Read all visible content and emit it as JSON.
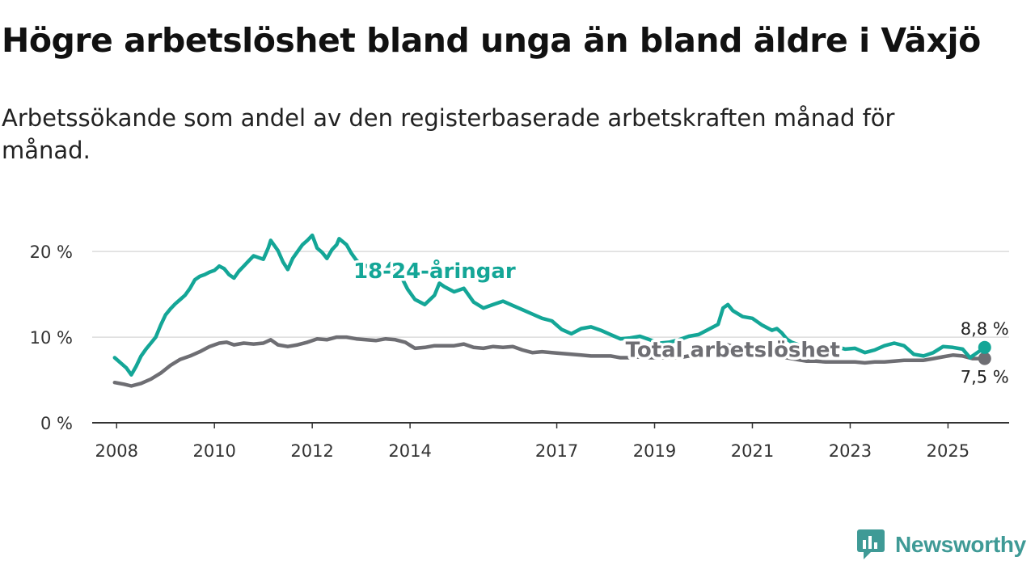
{
  "title": "Högre arbetslöshet bland unga än bland äldre i Växjö",
  "subtitle": "Arbetssökande som andel av den registerbaserade arbetskraften månad för månad.",
  "brand": {
    "name": "Newsworthy"
  },
  "colors": {
    "youth": "#14a697",
    "total": "#6e6e73",
    "grid": "#dcdcdc",
    "axis": "#333333"
  },
  "chart_data": {
    "type": "line",
    "title": "Högre arbetslöshet bland unga än bland äldre i Växjö",
    "subtitle": "Arbetssökande som andel av den registerbaserade arbetskraften månad för månad.",
    "xlabel": "",
    "ylabel": "",
    "xlim": [
      2007.5,
      2026.25
    ],
    "ylim": [
      0,
      22
    ],
    "grid": "horizontal",
    "x_ticks": [
      2008,
      2010,
      2012,
      2014,
      2017,
      2019,
      2021,
      2023,
      2025
    ],
    "x_tick_labels": [
      "2008",
      "2010",
      "2012",
      "2014",
      "2017",
      "2019",
      "2021",
      "2023",
      "2025"
    ],
    "y_ticks": [
      0,
      10,
      20
    ],
    "y_tick_labels": [
      "0 %",
      "10 %",
      "20 %"
    ],
    "series": [
      {
        "name": "18-24-åringar",
        "color": "#14a697",
        "end_label": "8,8 %",
        "points": [
          [
            2007.96,
            7.6
          ],
          [
            2008.1,
            6.9
          ],
          [
            2008.2,
            6.4
          ],
          [
            2008.3,
            5.6
          ],
          [
            2008.4,
            6.6
          ],
          [
            2008.5,
            7.8
          ],
          [
            2008.6,
            8.6
          ],
          [
            2008.7,
            9.3
          ],
          [
            2008.8,
            10.0
          ],
          [
            2008.9,
            11.4
          ],
          [
            2009.0,
            12.6
          ],
          [
            2009.1,
            13.3
          ],
          [
            2009.2,
            13.9
          ],
          [
            2009.3,
            14.4
          ],
          [
            2009.4,
            14.9
          ],
          [
            2009.5,
            15.7
          ],
          [
            2009.6,
            16.7
          ],
          [
            2009.7,
            17.1
          ],
          [
            2009.8,
            17.3
          ],
          [
            2009.9,
            17.6
          ],
          [
            2010.0,
            17.8
          ],
          [
            2010.1,
            18.3
          ],
          [
            2010.2,
            18.0
          ],
          [
            2010.3,
            17.3
          ],
          [
            2010.4,
            16.9
          ],
          [
            2010.5,
            17.7
          ],
          [
            2010.6,
            18.3
          ],
          [
            2010.7,
            18.9
          ],
          [
            2010.8,
            19.5
          ],
          [
            2010.9,
            19.3
          ],
          [
            2011.0,
            19.1
          ],
          [
            2011.1,
            20.4
          ],
          [
            2011.15,
            21.3
          ],
          [
            2011.3,
            20.1
          ],
          [
            2011.4,
            18.8
          ],
          [
            2011.5,
            17.9
          ],
          [
            2011.6,
            19.2
          ],
          [
            2011.7,
            20.0
          ],
          [
            2011.8,
            20.8
          ],
          [
            2011.9,
            21.3
          ],
          [
            2012.0,
            21.9
          ],
          [
            2012.1,
            20.4
          ],
          [
            2012.2,
            19.9
          ],
          [
            2012.3,
            19.2
          ],
          [
            2012.4,
            20.2
          ],
          [
            2012.5,
            20.8
          ],
          [
            2012.55,
            21.5
          ],
          [
            2012.7,
            20.8
          ],
          [
            2012.8,
            19.8
          ],
          [
            2012.9,
            19.0
          ],
          [
            2013.0,
            18.6
          ],
          [
            2013.15,
            18.2
          ],
          [
            2013.3,
            17.9
          ],
          [
            2013.45,
            17.4
          ],
          [
            2013.6,
            18.6
          ],
          [
            2013.8,
            17.3
          ],
          [
            2013.95,
            15.6
          ],
          [
            2014.1,
            14.4
          ],
          [
            2014.3,
            13.8
          ],
          [
            2014.5,
            14.9
          ],
          [
            2014.6,
            16.3
          ],
          [
            2014.7,
            15.9
          ],
          [
            2014.9,
            15.3
          ],
          [
            2015.1,
            15.7
          ],
          [
            2015.3,
            14.1
          ],
          [
            2015.5,
            13.4
          ],
          [
            2015.7,
            13.8
          ],
          [
            2015.9,
            14.2
          ],
          [
            2016.1,
            13.7
          ],
          [
            2016.3,
            13.2
          ],
          [
            2016.5,
            12.7
          ],
          [
            2016.7,
            12.2
          ],
          [
            2016.9,
            11.9
          ],
          [
            2017.1,
            10.9
          ],
          [
            2017.3,
            10.4
          ],
          [
            2017.5,
            11.0
          ],
          [
            2017.7,
            11.2
          ],
          [
            2017.9,
            10.8
          ],
          [
            2018.1,
            10.3
          ],
          [
            2018.3,
            9.8
          ],
          [
            2018.5,
            9.9
          ],
          [
            2018.7,
            10.1
          ],
          [
            2018.9,
            9.7
          ],
          [
            2019.1,
            9.3
          ],
          [
            2019.3,
            9.4
          ],
          [
            2019.5,
            9.7
          ],
          [
            2019.7,
            10.1
          ],
          [
            2019.9,
            10.3
          ],
          [
            2020.1,
            10.9
          ],
          [
            2020.3,
            11.5
          ],
          [
            2020.4,
            13.4
          ],
          [
            2020.5,
            13.8
          ],
          [
            2020.6,
            13.1
          ],
          [
            2020.8,
            12.4
          ],
          [
            2021.0,
            12.2
          ],
          [
            2021.2,
            11.4
          ],
          [
            2021.4,
            10.8
          ],
          [
            2021.5,
            11.0
          ],
          [
            2021.6,
            10.5
          ],
          [
            2021.7,
            9.8
          ],
          [
            2021.8,
            9.4
          ],
          [
            2022.0,
            9.0
          ],
          [
            2022.1,
            8.4
          ],
          [
            2022.3,
            7.8
          ],
          [
            2022.5,
            8.4
          ],
          [
            2022.7,
            8.9
          ],
          [
            2022.9,
            8.6
          ],
          [
            2023.1,
            8.7
          ],
          [
            2023.3,
            8.2
          ],
          [
            2023.5,
            8.5
          ],
          [
            2023.7,
            9.0
          ],
          [
            2023.9,
            9.3
          ],
          [
            2024.1,
            9.0
          ],
          [
            2024.3,
            8.0
          ],
          [
            2024.5,
            7.8
          ],
          [
            2024.7,
            8.2
          ],
          [
            2024.9,
            8.9
          ],
          [
            2025.1,
            8.8
          ],
          [
            2025.3,
            8.6
          ],
          [
            2025.45,
            7.6
          ],
          [
            2025.6,
            8.2
          ],
          [
            2025.75,
            8.8
          ]
        ]
      },
      {
        "name": "Total arbetslöshet",
        "color": "#6e6e73",
        "end_label": "7,5 %",
        "points": [
          [
            2007.96,
            4.7
          ],
          [
            2008.15,
            4.5
          ],
          [
            2008.3,
            4.3
          ],
          [
            2008.5,
            4.6
          ],
          [
            2008.7,
            5.1
          ],
          [
            2008.9,
            5.8
          ],
          [
            2009.1,
            6.7
          ],
          [
            2009.3,
            7.4
          ],
          [
            2009.5,
            7.8
          ],
          [
            2009.7,
            8.3
          ],
          [
            2009.9,
            8.9
          ],
          [
            2010.1,
            9.3
          ],
          [
            2010.25,
            9.4
          ],
          [
            2010.4,
            9.1
          ],
          [
            2010.6,
            9.3
          ],
          [
            2010.8,
            9.2
          ],
          [
            2011.0,
            9.3
          ],
          [
            2011.15,
            9.7
          ],
          [
            2011.3,
            9.1
          ],
          [
            2011.5,
            8.9
          ],
          [
            2011.7,
            9.1
          ],
          [
            2011.9,
            9.4
          ],
          [
            2012.1,
            9.8
          ],
          [
            2012.3,
            9.7
          ],
          [
            2012.5,
            10.0
          ],
          [
            2012.7,
            10.0
          ],
          [
            2012.9,
            9.8
          ],
          [
            2013.1,
            9.7
          ],
          [
            2013.3,
            9.6
          ],
          [
            2013.5,
            9.8
          ],
          [
            2013.7,
            9.7
          ],
          [
            2013.9,
            9.4
          ],
          [
            2014.1,
            8.7
          ],
          [
            2014.3,
            8.8
          ],
          [
            2014.5,
            9.0
          ],
          [
            2014.7,
            9.0
          ],
          [
            2014.9,
            9.0
          ],
          [
            2015.1,
            9.2
          ],
          [
            2015.3,
            8.8
          ],
          [
            2015.5,
            8.7
          ],
          [
            2015.7,
            8.9
          ],
          [
            2015.9,
            8.8
          ],
          [
            2016.1,
            8.9
          ],
          [
            2016.3,
            8.5
          ],
          [
            2016.5,
            8.2
          ],
          [
            2016.7,
            8.3
          ],
          [
            2016.9,
            8.2
          ],
          [
            2017.1,
            8.1
          ],
          [
            2017.3,
            8.0
          ],
          [
            2017.5,
            7.9
          ],
          [
            2017.7,
            7.8
          ],
          [
            2017.9,
            7.8
          ],
          [
            2018.1,
            7.8
          ],
          [
            2018.3,
            7.6
          ],
          [
            2018.5,
            7.6
          ],
          [
            2018.7,
            7.7
          ],
          [
            2018.9,
            7.6
          ],
          [
            2019.1,
            7.6
          ],
          [
            2019.3,
            7.6
          ],
          [
            2019.5,
            7.6
          ],
          [
            2019.7,
            7.8
          ],
          [
            2019.9,
            8.1
          ],
          [
            2020.1,
            8.5
          ],
          [
            2020.3,
            8.8
          ],
          [
            2020.5,
            9.1
          ],
          [
            2020.7,
            8.7
          ],
          [
            2020.9,
            8.5
          ],
          [
            2021.1,
            8.2
          ],
          [
            2021.3,
            8.0
          ],
          [
            2021.5,
            7.8
          ],
          [
            2021.7,
            7.6
          ],
          [
            2021.9,
            7.4
          ],
          [
            2022.1,
            7.2
          ],
          [
            2022.3,
            7.2
          ],
          [
            2022.5,
            7.1
          ],
          [
            2022.7,
            7.1
          ],
          [
            2022.9,
            7.1
          ],
          [
            2023.1,
            7.1
          ],
          [
            2023.3,
            7.0
          ],
          [
            2023.5,
            7.1
          ],
          [
            2023.7,
            7.1
          ],
          [
            2023.9,
            7.2
          ],
          [
            2024.1,
            7.3
          ],
          [
            2024.3,
            7.3
          ],
          [
            2024.5,
            7.3
          ],
          [
            2024.7,
            7.5
          ],
          [
            2024.9,
            7.7
          ],
          [
            2025.1,
            7.9
          ],
          [
            2025.3,
            7.8
          ],
          [
            2025.5,
            7.5
          ],
          [
            2025.75,
            7.5
          ]
        ]
      }
    ],
    "annotations": [
      {
        "series": 0,
        "text": "18-24-åringar",
        "x": 2014.5,
        "y": 16.9
      },
      {
        "series": 1,
        "text": "Total arbetslöshet",
        "x": 2020.6,
        "y": 7.7
      }
    ]
  }
}
